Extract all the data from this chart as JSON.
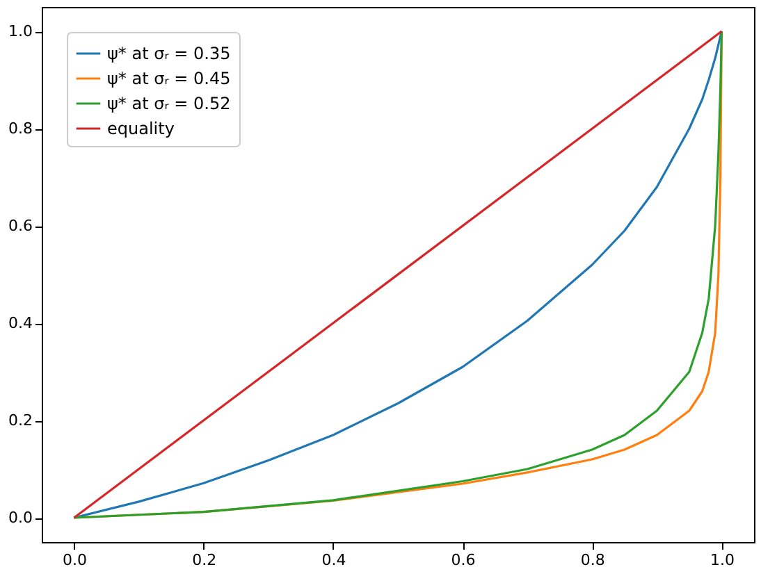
{
  "chart_data": {
    "type": "line",
    "series": [
      {
        "name": "ψ* at σᵣ = 0.35",
        "color": "#1f77b4",
        "x": [
          0,
          0.1,
          0.2,
          0.3,
          0.4,
          0.5,
          0.6,
          0.7,
          0.8,
          0.85,
          0.9,
          0.95,
          0.97,
          0.98,
          0.99,
          1.0
        ],
        "values": [
          0,
          0.033,
          0.071,
          0.118,
          0.17,
          0.235,
          0.31,
          0.405,
          0.52,
          0.59,
          0.68,
          0.8,
          0.86,
          0.9,
          0.945,
          1.0
        ]
      },
      {
        "name": "ψ* at σᵣ = 0.45",
        "color": "#ff7f0e",
        "x": [
          0,
          0.2,
          0.4,
          0.6,
          0.7,
          0.8,
          0.85,
          0.9,
          0.95,
          0.97,
          0.98,
          0.99,
          0.995,
          0.998,
          1.0
        ],
        "values": [
          0,
          0.012,
          0.035,
          0.07,
          0.093,
          0.12,
          0.14,
          0.17,
          0.22,
          0.26,
          0.3,
          0.38,
          0.5,
          0.7,
          1.0
        ]
      },
      {
        "name": "ψ* at σᵣ = 0.52",
        "color": "#2ca02c",
        "x": [
          0,
          0.2,
          0.4,
          0.6,
          0.7,
          0.8,
          0.85,
          0.9,
          0.95,
          0.97,
          0.98,
          0.99,
          0.995,
          0.998,
          1.0
        ],
        "values": [
          0,
          0.012,
          0.036,
          0.075,
          0.1,
          0.14,
          0.17,
          0.22,
          0.3,
          0.38,
          0.45,
          0.6,
          0.75,
          0.88,
          1.0
        ]
      },
      {
        "name": "equality",
        "color": "#d62728",
        "x": [
          0,
          1
        ],
        "values": [
          0,
          1
        ]
      }
    ],
    "xlim": [
      -0.05,
      1.05
    ],
    "ylim": [
      -0.05,
      1.05
    ],
    "xticks": [
      {
        "value": 0,
        "label": "0.0"
      },
      0.2,
      0.4,
      0.6,
      0.8,
      {
        "value": 1,
        "label": "1.0"
      }
    ],
    "yticks": [
      {
        "value": 0,
        "label": "0.0"
      },
      0.2,
      0.4,
      0.6,
      0.8,
      {
        "value": 1,
        "label": "1.0"
      }
    ],
    "grid": false,
    "legend": "top left",
    "marker": "none",
    "line_style": "solid"
  }
}
